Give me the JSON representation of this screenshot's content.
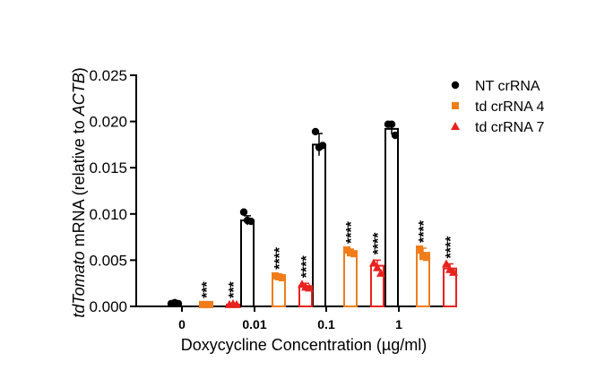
{
  "chart_data": {
    "type": "bar",
    "xlabel": "Doxycycline Concentration (µg/ml)",
    "ylabel_italic": "tdTomato",
    "ylabel_mid": " mRNA (relative to ",
    "ylabel_italic2": "ACTB",
    "ylabel_end": ")",
    "ylim": [
      0,
      0.025
    ],
    "yticks": [
      "0.000",
      "0.005",
      "0.010",
      "0.015",
      "0.020",
      "0.025"
    ],
    "ytick_values": [
      0,
      0.005,
      0.01,
      0.015,
      0.02,
      0.025
    ],
    "categories": [
      "0",
      "0.01",
      "0.1",
      "1"
    ],
    "grid": false,
    "legend_position": "right",
    "series": [
      {
        "name": "NT crRNA",
        "color": "#000000",
        "marker": "circle",
        "values": [
          0.0003,
          0.0093,
          0.0175,
          0.0192
        ],
        "errors": [
          0.0001,
          0.0005,
          0.0012,
          0.0006
        ],
        "points": [
          [
            0.0003,
            0.0004,
            0.0003
          ],
          [
            0.0102,
            0.0093,
            0.0092
          ],
          [
            0.0189,
            0.0172,
            0.0174
          ],
          [
            0.0197,
            0.0197,
            0.0185
          ]
        ],
        "sig": [
          "",
          "",
          "",
          ""
        ]
      },
      {
        "name": "td crRNA 4",
        "color": "#f07d1a",
        "marker": "square",
        "values": [
          0.0002,
          0.0032,
          0.0059,
          0.0058
        ],
        "errors": [
          0.0001,
          0.0002,
          0.0003,
          0.0005
        ],
        "points": [
          [
            0.0002,
            0.0002,
            0.0002
          ],
          [
            0.0033,
            0.0032,
            0.0031
          ],
          [
            0.0061,
            0.0058,
            0.0057
          ],
          [
            0.0062,
            0.0054,
            0.0053
          ]
        ],
        "sig": [
          "***",
          "****",
          "****",
          "****"
        ]
      },
      {
        "name": "td crRNA 7",
        "color": "#e8221e",
        "marker": "triangle",
        "values": [
          0.0002,
          0.0022,
          0.0044,
          0.0041
        ],
        "errors": [
          0.0001,
          0.0003,
          0.0006,
          0.0005
        ],
        "points": [
          [
            0.0002,
            0.0003,
            0.0002
          ],
          [
            0.0024,
            0.0021,
            0.002
          ],
          [
            0.0047,
            0.0042,
            0.0036
          ],
          [
            0.0046,
            0.004,
            0.0037
          ]
        ],
        "sig": [
          "***",
          "****",
          "****",
          "****"
        ]
      }
    ]
  }
}
